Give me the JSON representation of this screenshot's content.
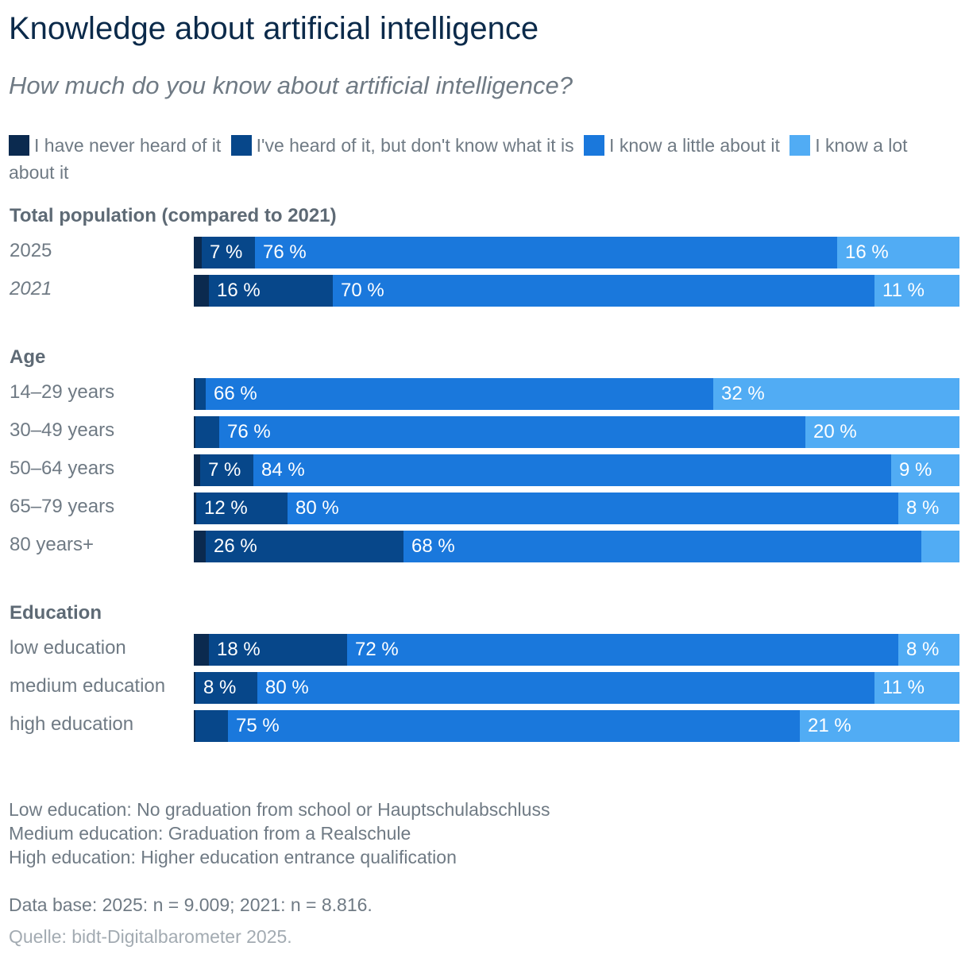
{
  "title": "Knowledge about artificial intelligence",
  "subtitle": "How much do you know about artificial intelligence?",
  "legend": [
    {
      "label": "I have never heard of it",
      "color": "#0b2a4f"
    },
    {
      "label": "I've heard of it, but don't know what it is",
      "color": "#07478a"
    },
    {
      "label": "I know a little about it",
      "color": "#1a78dc"
    },
    {
      "label": "I know a lot about it",
      "color": "#51acf4"
    }
  ],
  "notes": {
    "line1": "Low education: No graduation from school or Hauptschulabschluss",
    "line2": "Medium education: Graduation from a Realschule",
    "line3": "High education: Higher education entrance qualification",
    "database": "Data base: 2025: n = 9.009; 2021: n = 8.816.",
    "source": "Quelle: bidt-Digitalbarometer 2025."
  },
  "chart_data": {
    "type": "bar",
    "orientation": "horizontal",
    "stacked": true,
    "unit": "%",
    "xlim": [
      0,
      100
    ],
    "series_names": [
      "I have never heard of it",
      "I've heard of it, but don't know what it is",
      "I know a little about it",
      "I know a lot about it"
    ],
    "groups": [
      {
        "title": "Total population (compared to 2021)",
        "rows": [
          {
            "label": "2025",
            "italic": false,
            "values": [
              1,
              7,
              76,
              16
            ],
            "labels": [
              "",
              "7 %",
              "76 %",
              "16 %"
            ]
          },
          {
            "label": "2021",
            "italic": true,
            "values": [
              2,
              16,
              70,
              11
            ],
            "labels": [
              "",
              "16 %",
              "70 %",
              "11 %"
            ]
          }
        ]
      },
      {
        "title": "Age",
        "rows": [
          {
            "label": "14–29 years",
            "italic": false,
            "values": [
              0.2,
              1.3,
              66,
              32
            ],
            "labels": [
              "",
              "",
              "66 %",
              "32 %"
            ]
          },
          {
            "label": "30–49 years",
            "italic": false,
            "values": [
              0.2,
              3.1,
              76,
              20
            ],
            "labels": [
              "",
              "",
              "76 %",
              "20 %"
            ]
          },
          {
            "label": "50–64 years",
            "italic": false,
            "values": [
              0.8,
              7,
              84,
              9
            ],
            "labels": [
              "",
              "7 %",
              "84 %",
              "9 %"
            ]
          },
          {
            "label": "65–79 years",
            "italic": false,
            "values": [
              0.3,
              12,
              80,
              8
            ],
            "labels": [
              "",
              "12 %",
              "80 %",
              "8 %"
            ]
          },
          {
            "label": "80 years+",
            "italic": false,
            "values": [
              1.6,
              26,
              68,
              5
            ],
            "labels": [
              "",
              "26 %",
              "68 %",
              ""
            ]
          }
        ]
      },
      {
        "title": "Education",
        "rows": [
          {
            "label": "low education",
            "italic": false,
            "values": [
              2,
              18,
              72,
              8
            ],
            "labels": [
              "",
              "18 %",
              "72 %",
              "8 %"
            ]
          },
          {
            "label": "medium education",
            "italic": false,
            "values": [
              0.2,
              8,
              80,
              11
            ],
            "labels": [
              "",
              "8 %",
              "80 %",
              "11 %"
            ]
          },
          {
            "label": "high education",
            "italic": false,
            "values": [
              0.2,
              4.3,
              75,
              21
            ],
            "labels": [
              "",
              "",
              "75 %",
              "21 %"
            ]
          }
        ]
      }
    ]
  }
}
